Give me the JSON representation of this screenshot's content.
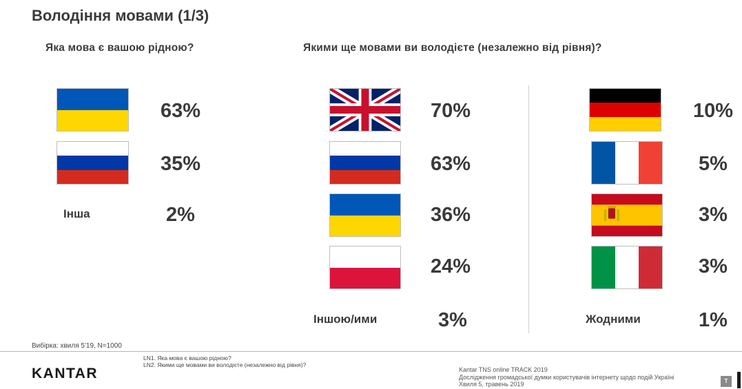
{
  "title": "Володіння мовами (1/3)",
  "chart_data": [
    {
      "type": "table",
      "question": "Яка мова є вашою рідною?",
      "items": [
        {
          "flag": "ukraine-flag",
          "value": 63,
          "label": "63%"
        },
        {
          "flag": "russia-flag",
          "value": 35,
          "label": "35%"
        },
        {
          "name": "Інша",
          "value": 2,
          "label": "2%"
        }
      ]
    },
    {
      "type": "table",
      "question": "Якими ще мовами ви володієте (незалежно від рівня)?",
      "items": [
        {
          "flag": "uk-flag",
          "value": 70,
          "label": "70%"
        },
        {
          "flag": "russia-flag",
          "value": 63,
          "label": "63%"
        },
        {
          "flag": "ukraine-flag",
          "value": 36,
          "label": "36%"
        },
        {
          "flag": "poland-flag",
          "value": 24,
          "label": "24%"
        },
        {
          "name": "Іншою/ими",
          "value": 3,
          "label": "3%"
        },
        {
          "flag": "germany-flag",
          "value": 10,
          "label": "10%"
        },
        {
          "flag": "france-flag",
          "value": 5,
          "label": "5%"
        },
        {
          "flag": "spain-flag",
          "value": 3,
          "label": "3%"
        },
        {
          "flag": "italy-flag",
          "value": 3,
          "label": "3%"
        },
        {
          "name": "Жодними",
          "value": 1,
          "label": "1%"
        }
      ]
    }
  ],
  "colors": {
    "ukraine_blue": "#0057b7",
    "ukraine_yellow": "#ffd700",
    "russia_blue": "#0039a6",
    "russia_red": "#d52b1e",
    "uk_blue": "#012169",
    "uk_red": "#c8102e",
    "poland_red": "#dc143c",
    "germany_red": "#dd0000",
    "germany_gold": "#ffce00",
    "france_blue": "#0055a4",
    "france_red": "#ef4135",
    "spain_red": "#c60b1e",
    "spain_yellow": "#ffc400",
    "italy_green": "#009246",
    "italy_red": "#ce2b37",
    "footer_line": "#e0b93c"
  },
  "footer": {
    "sample": "Вибірка: хвиля 5'19, N=1000",
    "brand": "KANTAR",
    "note_ln1": "LN1. Яка мова є вашою рідною?",
    "note_ln2": "LN2. Якими ще мовами ви володієте (незалежно від рівня)?",
    "source_line1": "Kantar TNS online TRACK 2019",
    "source_line2": "Дослідження громадської думки користувачів інтернету щодо подій Україні",
    "source_line3": "Хвиля 5, травень 2019",
    "page_badge": "T"
  }
}
